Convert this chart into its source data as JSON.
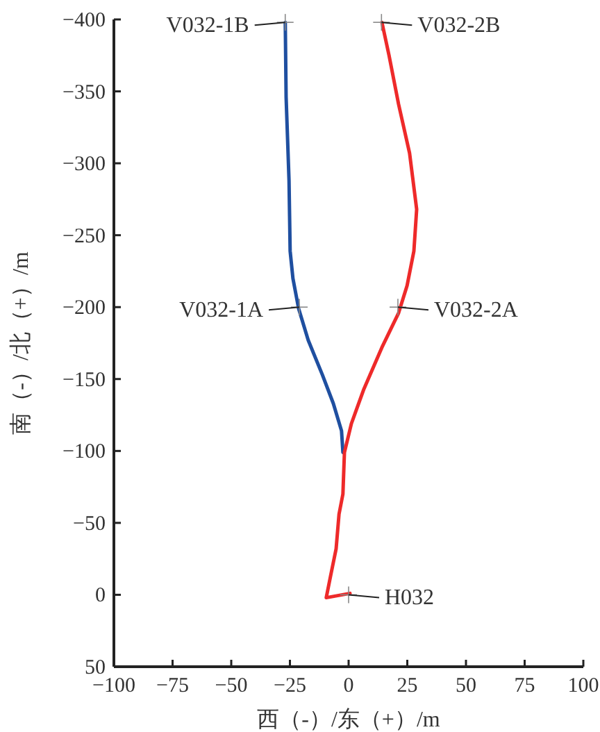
{
  "chart_data": {
    "type": "line",
    "xlabel": "西（-）/东（+）/m",
    "ylabel": "南（-）/北（+）/m",
    "xlim": [
      -100,
      100
    ],
    "xticks": [
      -100,
      -75,
      -50,
      -25,
      0,
      25,
      50,
      75,
      100
    ],
    "ylim": [
      50,
      -400
    ],
    "yticks": [
      -400,
      -350,
      -300,
      -250,
      -200,
      -150,
      -100,
      -50,
      0,
      50
    ],
    "grid": false,
    "marker": "none",
    "line_style": "solid",
    "series": [
      {
        "color": "#1f4fa0",
        "x": [
          -27,
          -26.6,
          -25.4,
          -24.9,
          -23.7,
          -21.3,
          -17.2,
          -11.2,
          -6.5,
          -3,
          -2.4
        ],
        "values": [
          -398,
          -346,
          -288,
          -239,
          -220,
          -199,
          -177,
          -153,
          -133,
          -114,
          -99
        ]
      },
      {
        "color": "#ee2a2a",
        "x": [
          14.2,
          17.2,
          21.3,
          26,
          29,
          27.8,
          24.9,
          21.3,
          14.2,
          6.5,
          1.2,
          -1.8,
          -2.4,
          -4.1,
          -5.3,
          -7.7,
          -9.5,
          0.6
        ],
        "values": [
          -398,
          -375,
          -341,
          -307,
          -268,
          -239,
          -215,
          -196,
          -172,
          -143,
          -119,
          -99,
          -70,
          -56,
          -32,
          -13,
          2,
          -1
        ]
      }
    ],
    "annotations": [
      {
        "text": "V032-1B",
        "x": -27,
        "y": -398
      },
      {
        "text": "V032-2B",
        "x": 14,
        "y": -398
      },
      {
        "text": "V032-1A",
        "x": -21,
        "y": -200
      },
      {
        "text": "V032-2A",
        "x": 21,
        "y": -200
      },
      {
        "text": "H032",
        "x": 0,
        "y": 0
      }
    ]
  }
}
